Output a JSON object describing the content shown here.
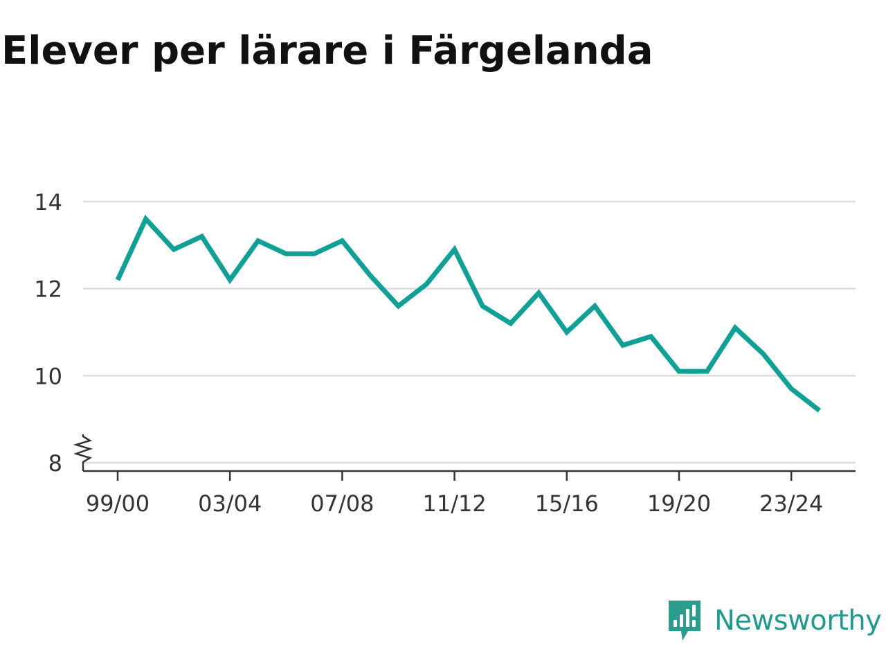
{
  "chart_data": {
    "type": "line",
    "title": "Elever per lärare i Färgelanda",
    "xlabel": "",
    "ylabel": "",
    "x": [
      "99/00",
      "00/01",
      "01/02",
      "02/03",
      "03/04",
      "04/05",
      "05/06",
      "06/07",
      "07/08",
      "08/09",
      "09/10",
      "10/11",
      "11/12",
      "12/13",
      "13/14",
      "14/15",
      "15/16",
      "16/17",
      "17/18",
      "18/19",
      "19/20",
      "20/21",
      "21/22",
      "22/23",
      "23/24",
      "24/25"
    ],
    "x_tick_labels": [
      "99/00",
      "03/04",
      "07/08",
      "11/12",
      "15/16",
      "19/20",
      "23/24"
    ],
    "series": [
      {
        "values": [
          12.2,
          13.6,
          12.9,
          13.2,
          12.2,
          13.1,
          12.8,
          12.8,
          13.1,
          12.3,
          11.6,
          12.1,
          12.9,
          11.6,
          11.2,
          11.9,
          11.0,
          11.6,
          10.7,
          10.9,
          10.1,
          10.1,
          11.1,
          10.5,
          9.7,
          9.2
        ]
      }
    ],
    "y_ticks": [
      "8",
      "10",
      "12",
      "14"
    ],
    "ylim": [
      8,
      14
    ],
    "y_axis_break": true,
    "grid": "horizontal",
    "legend": "none",
    "colors": {
      "line": "#0fa195",
      "grid": "#dddddd",
      "axis": "#333333",
      "text": "#333333"
    }
  },
  "brand": {
    "name": "Newsworthy",
    "logo_icon": "newsworthy-logo-icon",
    "color": "#2a9d8f"
  }
}
